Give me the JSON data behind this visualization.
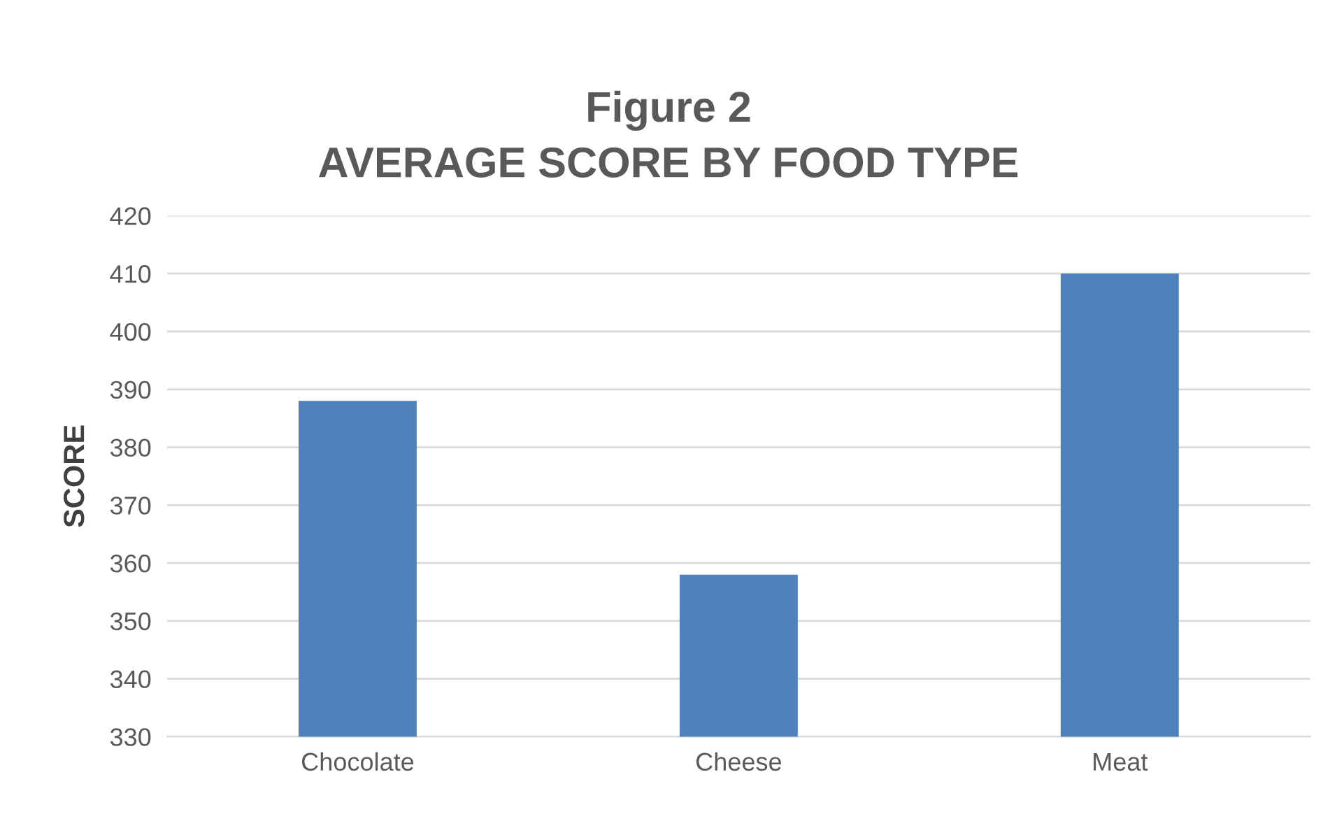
{
  "chart_data": {
    "type": "bar",
    "title": "Figure 2\nAVERAGE SCORE BY FOOD TYPE",
    "ylabel": "SCORE",
    "categories": [
      "Chocolate",
      "Cheese",
      "Meat"
    ],
    "values": [
      388,
      358,
      410
    ],
    "color": "#4f81bd",
    "ylim": [
      330,
      420
    ],
    "yticks": [
      330,
      340,
      350,
      360,
      370,
      380,
      390,
      400,
      410,
      420
    ],
    "grid": "y",
    "legend": false
  }
}
